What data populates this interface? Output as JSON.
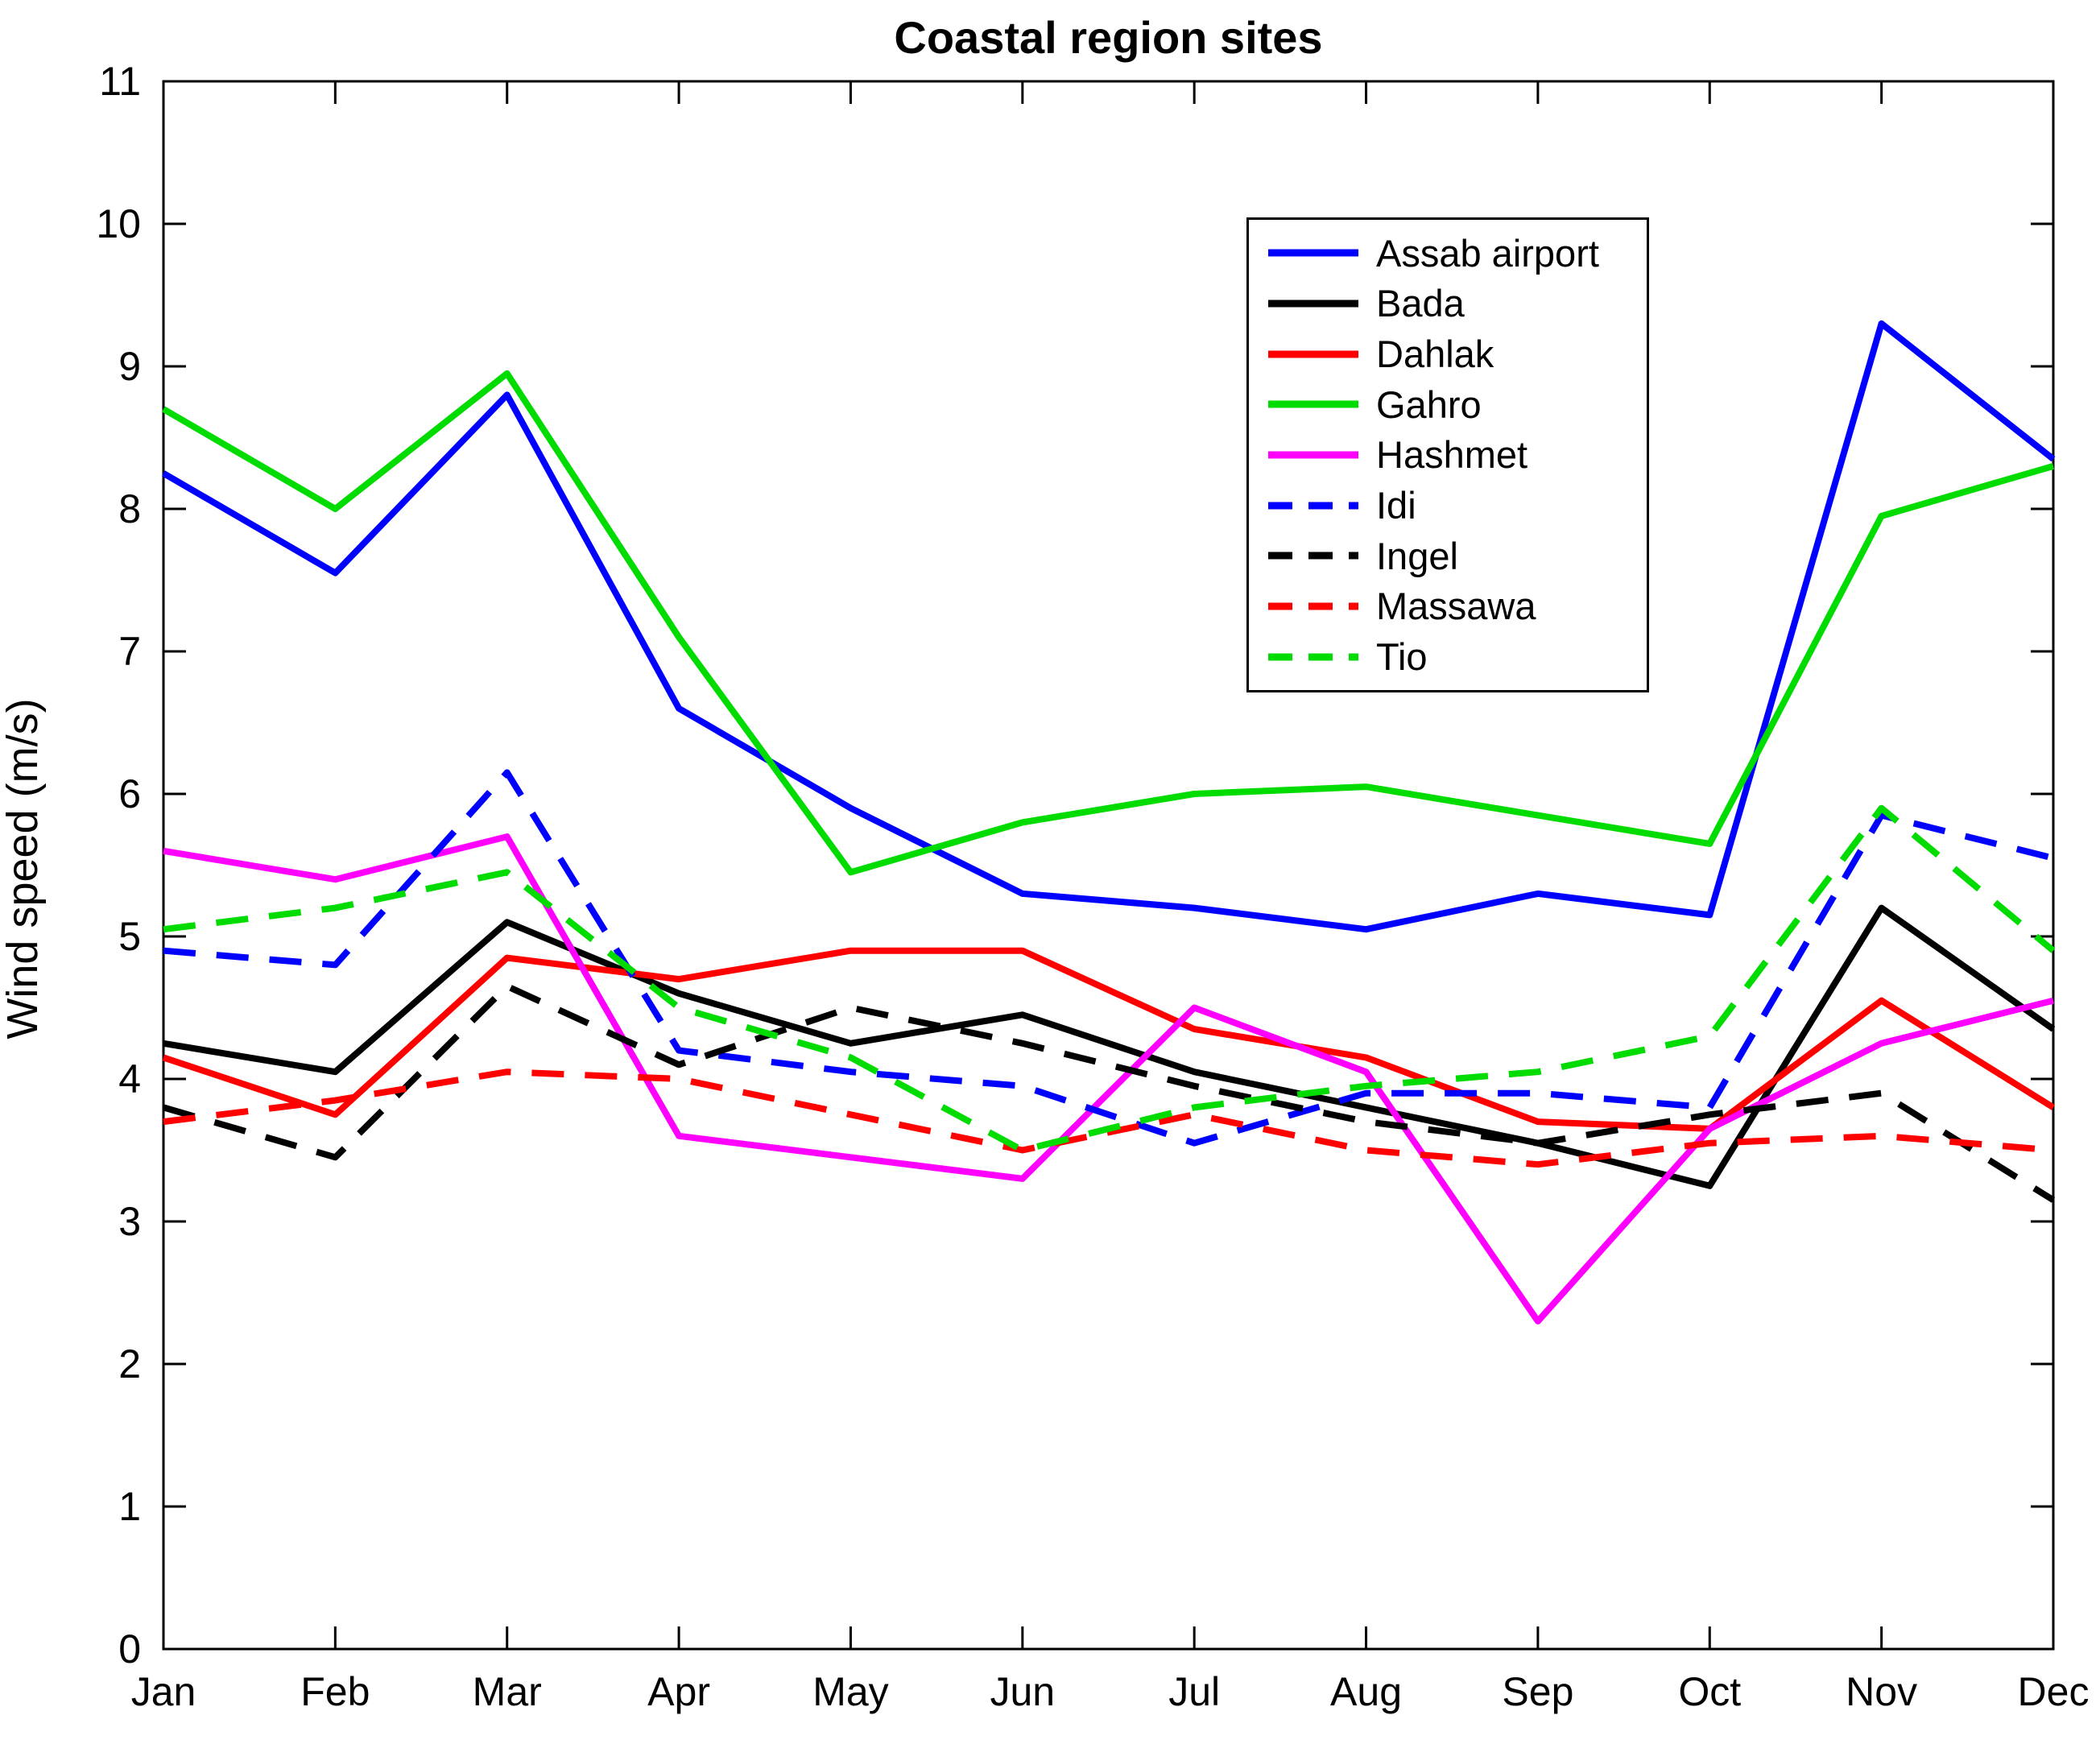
{
  "figure": {
    "title": "Coastal region sites",
    "ylabel": "Wind speed (m/s)"
  },
  "chart_data": {
    "type": "line",
    "title": "Coastal region sites",
    "xlabel": "",
    "ylabel": "Wind speed (m/s)",
    "categories": [
      "Jan",
      "Feb",
      "Mar",
      "Apr",
      "May",
      "Jun",
      "Jul",
      "Aug",
      "Sep",
      "Oct",
      "Nov",
      "Dec"
    ],
    "ylim": [
      0,
      11
    ],
    "yticks": [
      0,
      1,
      2,
      3,
      4,
      5,
      6,
      7,
      8,
      9,
      10,
      11
    ],
    "grid": false,
    "legend_position": "upper-right-inside",
    "axis_color": "#000000",
    "series": [
      {
        "name": "Assab airport",
        "color": "#0000FF",
        "style": "solid",
        "values": [
          8.25,
          7.55,
          8.8,
          6.6,
          5.9,
          5.3,
          5.2,
          5.05,
          5.3,
          5.15,
          9.3,
          8.35
        ]
      },
      {
        "name": "Bada",
        "color": "#000000",
        "style": "solid",
        "values": [
          4.25,
          4.05,
          5.1,
          4.6,
          4.25,
          4.45,
          4.05,
          3.8,
          3.55,
          3.25,
          5.2,
          4.35
        ]
      },
      {
        "name": "Dahlak",
        "color": "#FF0000",
        "style": "solid",
        "values": [
          4.15,
          3.75,
          4.85,
          4.7,
          4.9,
          4.9,
          4.35,
          4.15,
          3.7,
          3.65,
          4.55,
          3.8
        ]
      },
      {
        "name": "Gahro",
        "color": "#00DB00",
        "style": "solid",
        "values": [
          8.7,
          8.0,
          8.95,
          7.1,
          5.45,
          5.8,
          6.0,
          6.05,
          5.85,
          5.65,
          7.95,
          8.3
        ]
      },
      {
        "name": "Hashmet",
        "color": "#FF00FF",
        "style": "solid",
        "values": [
          5.6,
          5.4,
          5.7,
          3.6,
          3.45,
          3.3,
          4.5,
          4.05,
          2.3,
          3.65,
          4.25,
          4.55
        ]
      },
      {
        "name": "Idi",
        "color": "#0000FF",
        "style": "dashed",
        "values": [
          4.9,
          4.8,
          6.15,
          4.2,
          4.05,
          3.95,
          3.55,
          3.9,
          3.9,
          3.8,
          5.85,
          5.55
        ]
      },
      {
        "name": "Ingel",
        "color": "#000000",
        "style": "dashed",
        "values": [
          3.8,
          3.45,
          4.65,
          4.1,
          4.5,
          4.25,
          3.95,
          3.7,
          3.55,
          3.75,
          3.9,
          3.15
        ]
      },
      {
        "name": "Massawa",
        "color": "#FF0000",
        "style": "dashed",
        "values": [
          3.7,
          3.85,
          4.05,
          4.0,
          3.75,
          3.5,
          3.75,
          3.5,
          3.4,
          3.55,
          3.6,
          3.5
        ]
      },
      {
        "name": "Tio",
        "color": "#00DB00",
        "style": "dashed",
        "values": [
          5.05,
          5.2,
          5.45,
          4.5,
          4.15,
          3.5,
          3.8,
          3.95,
          4.05,
          4.3,
          5.9,
          4.9
        ]
      }
    ]
  }
}
